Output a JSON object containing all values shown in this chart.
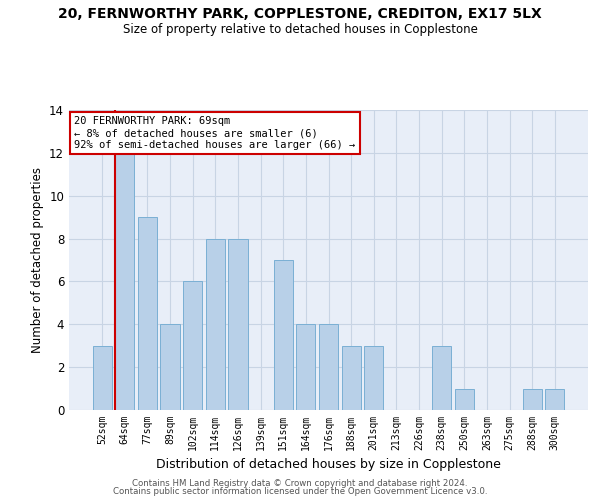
{
  "title": "20, FERNWORTHY PARK, COPPLESTONE, CREDITON, EX17 5LX",
  "subtitle": "Size of property relative to detached houses in Copplestone",
  "xlabel": "Distribution of detached houses by size in Copplestone",
  "ylabel": "Number of detached properties",
  "categories": [
    "52sqm",
    "64sqm",
    "77sqm",
    "89sqm",
    "102sqm",
    "114sqm",
    "126sqm",
    "139sqm",
    "151sqm",
    "164sqm",
    "176sqm",
    "188sqm",
    "201sqm",
    "213sqm",
    "226sqm",
    "238sqm",
    "250sqm",
    "263sqm",
    "275sqm",
    "288sqm",
    "300sqm"
  ],
  "values": [
    3,
    12,
    9,
    4,
    6,
    8,
    8,
    0,
    7,
    4,
    4,
    3,
    3,
    0,
    0,
    3,
    1,
    0,
    0,
    1,
    1
  ],
  "bar_color": "#b8d0e8",
  "bar_edgecolor": "#7aafd4",
  "highlight_index": 1,
  "highlight_color": "#cc0000",
  "annotation_line1": "20 FERNWORTHY PARK: 69sqm",
  "annotation_line2": "← 8% of detached houses are smaller (6)",
  "annotation_line3": "92% of semi-detached houses are larger (66) →",
  "annotation_box_facecolor": "#ffffff",
  "annotation_box_edgecolor": "#cc0000",
  "ylim": [
    0,
    14
  ],
  "yticks": [
    0,
    2,
    4,
    6,
    8,
    10,
    12,
    14
  ],
  "grid_color": "#c8d4e4",
  "background_color": "#e8eef8",
  "footer_line1": "Contains HM Land Registry data © Crown copyright and database right 2024.",
  "footer_line2": "Contains public sector information licensed under the Open Government Licence v3.0."
}
